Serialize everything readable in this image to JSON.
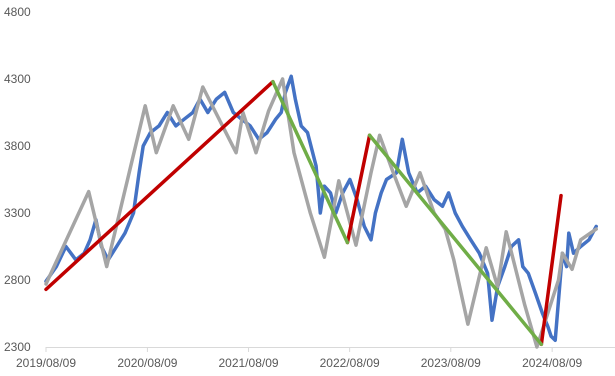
{
  "chart_data": {
    "type": "line",
    "title": "",
    "xlabel": "",
    "ylabel": "",
    "ylim": [
      2300,
      4800
    ],
    "yticks": [
      2300,
      2800,
      3300,
      3800,
      4300,
      4800
    ],
    "xlim": [
      "2019/08/09",
      "2025/01/15"
    ],
    "xticks": [
      "2019/08/09",
      "2020/08/09",
      "2021/08/09",
      "2022/08/09",
      "2023/08/09",
      "2024/08/09"
    ],
    "grid": false,
    "legend": "none",
    "colors": {
      "price": "#4472C4",
      "zigzag": "#A5A5A5",
      "up_trend": "#C00000",
      "down_trend": "#70AD47",
      "axis": "#D9D9D9",
      "tick_text": "#595959"
    },
    "series": [
      {
        "role": "price",
        "points": [
          [
            "2019/08/09",
            2790
          ],
          [
            "2019/09/15",
            2900
          ],
          [
            "2019/10/20",
            3050
          ],
          [
            "2019/11/25",
            2950
          ],
          [
            "2019/12/25",
            3000
          ],
          [
            "2020/01/15",
            3100
          ],
          [
            "2020/02/05",
            3250
          ],
          [
            "2020/02/25",
            3050
          ],
          [
            "2020/03/20",
            2950
          ],
          [
            "2020/04/20",
            3050
          ],
          [
            "2020/05/20",
            3150
          ],
          [
            "2020/06/20",
            3300
          ],
          [
            "2020/07/10",
            3600
          ],
          [
            "2020/07/25",
            3800
          ],
          [
            "2020/08/20",
            3900
          ],
          [
            "2020/09/20",
            3950
          ],
          [
            "2020/10/20",
            4050
          ],
          [
            "2020/11/20",
            3950
          ],
          [
            "2020/12/20",
            4000
          ],
          [
            "2021/01/20",
            4050
          ],
          [
            "2021/02/15",
            4150
          ],
          [
            "2021/03/15",
            4050
          ],
          [
            "2021/04/15",
            4150
          ],
          [
            "2021/05/15",
            4200
          ],
          [
            "2021/06/15",
            4050
          ],
          [
            "2021/07/15",
            4000
          ],
          [
            "2021/08/15",
            3950
          ],
          [
            "2021/09/15",
            3850
          ],
          [
            "2021/10/15",
            3900
          ],
          [
            "2021/11/15",
            4000
          ],
          [
            "2021/12/05",
            4050
          ],
          [
            "2021/12/20",
            4200
          ],
          [
            "2022/01/10",
            4320
          ],
          [
            "2022/01/25",
            4150
          ],
          [
            "2022/02/15",
            3950
          ],
          [
            "2022/03/10",
            3900
          ],
          [
            "2022/04/10",
            3650
          ],
          [
            "2022/04/25",
            3300
          ],
          [
            "2022/05/10",
            3500
          ],
          [
            "2022/06/01",
            3450
          ],
          [
            "2022/06/20",
            3300
          ],
          [
            "2022/07/15",
            3450
          ],
          [
            "2022/08/10",
            3550
          ],
          [
            "2022/09/05",
            3400
          ],
          [
            "2022/10/01",
            3200
          ],
          [
            "2022/10/25",
            3100
          ],
          [
            "2022/11/10",
            3300
          ],
          [
            "2022/12/01",
            3450
          ],
          [
            "2022/12/20",
            3550
          ],
          [
            "2023/01/25",
            3600
          ],
          [
            "2023/02/15",
            3850
          ],
          [
            "2023/03/10",
            3600
          ],
          [
            "2023/04/10",
            3450
          ],
          [
            "2023/05/10",
            3500
          ],
          [
            "2023/06/10",
            3400
          ],
          [
            "2023/07/10",
            3350
          ],
          [
            "2023/08/01",
            3450
          ],
          [
            "2023/08/25",
            3300
          ],
          [
            "2023/09/20",
            3200
          ],
          [
            "2023/10/20",
            3100
          ],
          [
            "2023/11/20",
            3000
          ],
          [
            "2023/12/20",
            2850
          ],
          [
            "2024/01/05",
            2500
          ],
          [
            "2024/01/25",
            2750
          ],
          [
            "2024/02/20",
            2900
          ],
          [
            "2024/03/15",
            3050
          ],
          [
            "2024/04/10",
            3100
          ],
          [
            "2024/04/25",
            2900
          ],
          [
            "2024/05/15",
            2850
          ],
          [
            "2024/06/10",
            2700
          ],
          [
            "2024/07/05",
            2550
          ],
          [
            "2024/07/25",
            2450
          ],
          [
            "2024/08/05",
            2380
          ],
          [
            "2024/08/20",
            2350
          ],
          [
            "2024/09/15",
            3000
          ],
          [
            "2024/09/30",
            2900
          ],
          [
            "2024/10/08",
            3150
          ],
          [
            "2024/10/25",
            3000
          ],
          [
            "2024/11/20",
            3050
          ],
          [
            "2024/12/20",
            3100
          ],
          [
            "2025/01/15",
            3200
          ]
        ]
      },
      {
        "role": "zigzag",
        "points": [
          [
            "2019/08/09",
            2770
          ],
          [
            "2020/01/10",
            3460
          ],
          [
            "2020/03/15",
            2900
          ],
          [
            "2020/08/01",
            4100
          ],
          [
            "2020/09/10",
            3750
          ],
          [
            "2020/11/10",
            4100
          ],
          [
            "2021/01/05",
            3850
          ],
          [
            "2021/02/25",
            4240
          ],
          [
            "2021/06/25",
            3750
          ],
          [
            "2021/07/20",
            4050
          ],
          [
            "2021/09/05",
            3750
          ],
          [
            "2021/10/20",
            4060
          ],
          [
            "2021/12/10",
            4300
          ],
          [
            "2022/01/20",
            3750
          ],
          [
            "2022/03/20",
            3300
          ],
          [
            "2022/05/10",
            2970
          ],
          [
            "2022/07/01",
            3540
          ],
          [
            "2022/09/01",
            3060
          ],
          [
            "2022/10/25",
            3600
          ],
          [
            "2022/11/25",
            3880
          ],
          [
            "2023/01/10",
            3620
          ],
          [
            "2023/03/01",
            3350
          ],
          [
            "2023/04/20",
            3600
          ],
          [
            "2023/06/10",
            3300
          ],
          [
            "2023/07/20",
            3180
          ],
          [
            "2023/08/20",
            2950
          ],
          [
            "2023/10/10",
            2470
          ],
          [
            "2023/12/15",
            3040
          ],
          [
            "2024/01/25",
            2750
          ],
          [
            "2024/02/25",
            3160
          ],
          [
            "2024/05/01",
            2620
          ],
          [
            "2024/06/15",
            2300
          ],
          [
            "2024/09/01",
            2800
          ],
          [
            "2024/09/15",
            3000
          ],
          [
            "2024/10/20",
            2880
          ],
          [
            "2024/11/20",
            3100
          ],
          [
            "2025/01/15",
            3180
          ]
        ]
      },
      {
        "role": "up_trend",
        "segments": [
          [
            [
              "2019/08/09",
              2730
            ],
            [
              "2021/11/05",
              4280
            ]
          ],
          [
            [
              "2022/08/01",
              3080
            ],
            [
              "2022/10/20",
              3880
            ]
          ],
          [
            [
              "2024/07/01",
              2320
            ],
            [
              "2024/09/10",
              3430
            ]
          ]
        ]
      },
      {
        "role": "down_trend",
        "segments": [
          [
            [
              "2021/11/05",
              4280
            ],
            [
              "2022/08/01",
              3080
            ]
          ],
          [
            [
              "2022/10/20",
              3880
            ],
            [
              "2024/07/01",
              2320
            ]
          ]
        ]
      }
    ]
  }
}
